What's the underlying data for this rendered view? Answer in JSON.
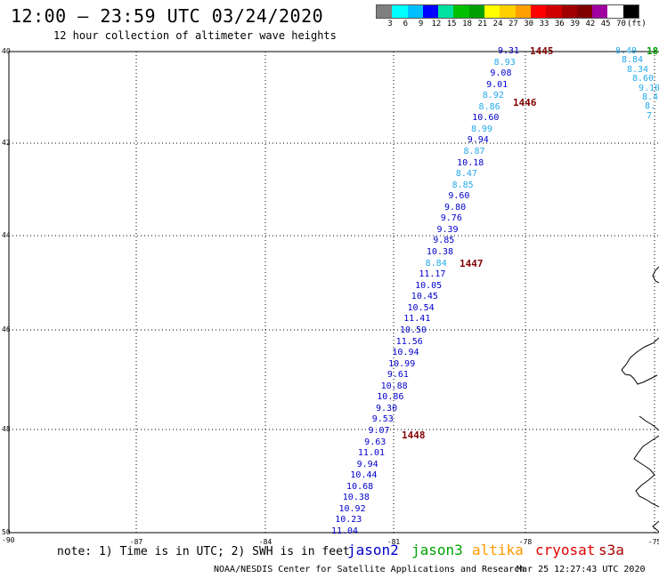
{
  "header": {
    "title": "12:00 – 23:59 UTC 03/24/2020",
    "subtitle": "12 hour collection of altimeter wave heights"
  },
  "colorbar": {
    "colors": [
      "#7f7f7f",
      "#00ffff",
      "#00bfff",
      "#0000ff",
      "#00e0a0",
      "#00c000",
      "#00a000",
      "#ffff00",
      "#ffd000",
      "#ffa000",
      "#ff0000",
      "#d00000",
      "#a00000",
      "#800000",
      "#a000a0",
      "#ffffff",
      "#000000"
    ],
    "labels": [
      "3",
      "6",
      "9",
      "12",
      "15",
      "18",
      "21",
      "24",
      "27",
      "30",
      "33",
      "36",
      "39",
      "42",
      "45",
      "70",
      "(ft)"
    ]
  },
  "axes": {
    "lat_labels": [
      "40",
      "42",
      "44",
      "46",
      "48",
      "50"
    ],
    "lon_labels": [
      "-87",
      "-84",
      "-81",
      "-78",
      "-75"
    ],
    "corner_label": "-90"
  },
  "track_jason2": {
    "wave_heights": [
      "9.31",
      "8.93",
      "9.08",
      "9.01",
      "8.92",
      "8.86",
      "10.60",
      "8.99",
      "9.94",
      "8.87",
      "10.18",
      "8.47",
      "8.85",
      "9.60",
      "9.80",
      "9.76",
      "9.39",
      "9.85",
      "10.38",
      "8.84",
      "11.17",
      "10.05",
      "10.45",
      "10.54",
      "11.41",
      "10.50",
      "11.56",
      "10.94",
      "10.99",
      "9.61",
      "10.88",
      "10.86",
      "9.30",
      "9.53",
      "9.07",
      "9.63",
      "11.01",
      "9.94",
      "10.44",
      "10.68",
      "10.38",
      "10.92",
      "10.23",
      "11.04"
    ],
    "orbit_labels": [
      "1445",
      "1446",
      "1447",
      "1448"
    ]
  },
  "track_east": {
    "wave_heights": [
      "8.49",
      "8.84",
      "8.34",
      "8.60",
      "9.10",
      "8.4",
      "8.",
      "7"
    ],
    "partial_label": "18"
  },
  "footer": {
    "note": "note: 1) Time is in UTC; 2) SWH is in feet",
    "satellites": [
      {
        "name": "jason2",
        "color": "#0000cc"
      },
      {
        "name": "jason3",
        "color": "#00a000"
      },
      {
        "name": "altika",
        "color": "#ff9900"
      },
      {
        "name": "cryosat",
        "color": "#e00000"
      },
      {
        "name": "s3a",
        "color": "#aa0000"
      }
    ],
    "credit": "NOAA/NESDIS Center for Satellite Applications and Research",
    "timestamp": "Mar 25 12:27:43 UTC 2020"
  },
  "colors": {
    "dark_blue": "#0000cc",
    "light_blue": "#22aaee",
    "orbit": "#800000"
  }
}
